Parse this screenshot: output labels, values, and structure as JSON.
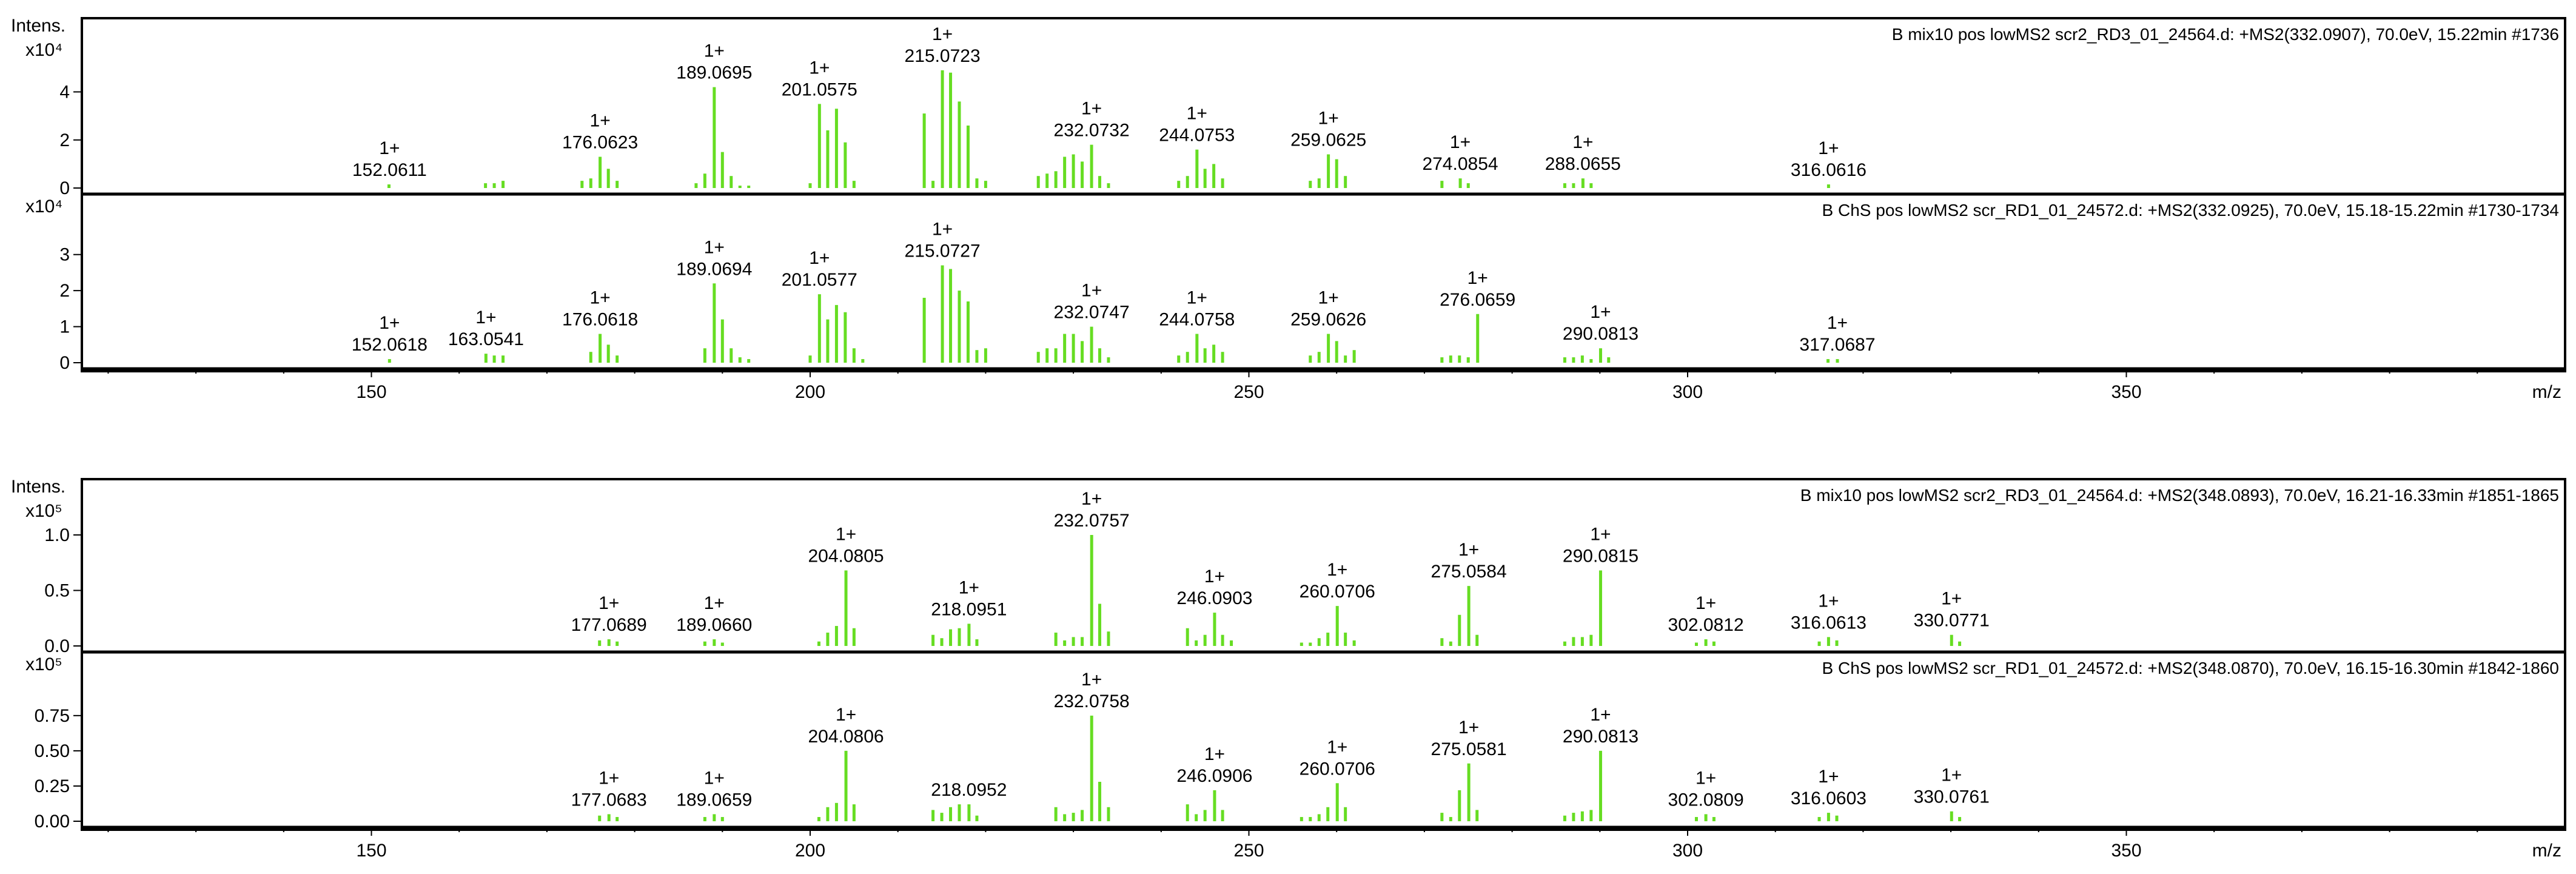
{
  "chart_data": [
    {
      "type": "bar",
      "group": 0,
      "title": "B mix10 pos lowMS2 scr2_RD3_01_24564.d: +MS2(332.0907), 70.0eV, 15.22min #1736",
      "ylabel": "Intens.",
      "yexp": "x10⁴",
      "xlabel": "",
      "yticks": [
        "0",
        "2",
        "4"
      ],
      "ytick_values": [
        0,
        2,
        4
      ],
      "ylim": [
        0,
        5.3
      ],
      "color": "#66dd22",
      "labels": [
        {
          "mz": 152.0611,
          "charge": "1+",
          "text": "152.0611"
        },
        {
          "mz": 176.0623,
          "charge": "1+",
          "text": "176.0623"
        },
        {
          "mz": 189.0695,
          "charge": "1+",
          "text": "189.0695"
        },
        {
          "mz": 201.0575,
          "charge": "1+",
          "text": "201.0575"
        },
        {
          "mz": 215.0723,
          "charge": "1+",
          "text": "215.0723"
        },
        {
          "mz": 232.0732,
          "charge": "1+",
          "text": "232.0732"
        },
        {
          "mz": 244.0753,
          "charge": "1+",
          "text": "244.0753"
        },
        {
          "mz": 259.0625,
          "charge": "1+",
          "text": "259.0625"
        },
        {
          "mz": 274.0854,
          "charge": "1+",
          "text": "274.0854"
        },
        {
          "mz": 288.0655,
          "charge": "1+",
          "text": "288.0655"
        },
        {
          "mz": 316.0616,
          "charge": "1+",
          "text": "316.0616"
        }
      ],
      "peaks": [
        [
          152.0,
          0.15
        ],
        [
          163.0,
          0.2
        ],
        [
          164.0,
          0.2
        ],
        [
          165.0,
          0.3
        ],
        [
          174.0,
          0.3
        ],
        [
          175.0,
          0.4
        ],
        [
          176.06,
          1.3
        ],
        [
          177.0,
          0.8
        ],
        [
          178.0,
          0.3
        ],
        [
          187.0,
          0.2
        ],
        [
          188.0,
          0.6
        ],
        [
          189.07,
          4.2
        ],
        [
          190.0,
          1.5
        ],
        [
          191.0,
          0.5
        ],
        [
          192.0,
          0.1
        ],
        [
          193.0,
          0.1
        ],
        [
          200.0,
          0.2
        ],
        [
          201.06,
          3.5
        ],
        [
          202.0,
          2.4
        ],
        [
          203.0,
          3.3
        ],
        [
          204.0,
          1.9
        ],
        [
          205.0,
          0.3
        ],
        [
          213.0,
          3.1
        ],
        [
          214.0,
          0.3
        ],
        [
          215.07,
          4.9
        ],
        [
          216.0,
          4.8
        ],
        [
          217.0,
          3.6
        ],
        [
          218.0,
          2.6
        ],
        [
          219.0,
          0.4
        ],
        [
          220.0,
          0.3
        ],
        [
          226.0,
          0.5
        ],
        [
          227.0,
          0.6
        ],
        [
          228.0,
          0.7
        ],
        [
          229.0,
          1.3
        ],
        [
          230.0,
          1.4
        ],
        [
          231.0,
          1.1
        ],
        [
          232.07,
          1.8
        ],
        [
          233.0,
          0.5
        ],
        [
          234.0,
          0.2
        ],
        [
          242.0,
          0.3
        ],
        [
          243.0,
          0.5
        ],
        [
          244.08,
          1.6
        ],
        [
          245.0,
          0.8
        ],
        [
          246.0,
          1.0
        ],
        [
          247.0,
          0.4
        ],
        [
          257.0,
          0.3
        ],
        [
          258.0,
          0.4
        ],
        [
          259.06,
          1.4
        ],
        [
          260.0,
          1.2
        ],
        [
          261.0,
          0.5
        ],
        [
          272.0,
          0.3
        ],
        [
          274.09,
          0.4
        ],
        [
          275.0,
          0.2
        ],
        [
          286.0,
          0.2
        ],
        [
          287.0,
          0.2
        ],
        [
          288.07,
          0.4
        ],
        [
          289.0,
          0.2
        ],
        [
          316.06,
          0.15
        ]
      ]
    },
    {
      "type": "bar",
      "group": 0,
      "title": "B ChS pos lowMS2 scr_RD1_01_24572.d: +MS2(332.0925), 70.0eV, 15.18-15.22min #1730-1734",
      "ylabel": "",
      "yexp": "x10⁴",
      "xlabel": "m/z",
      "yticks": [
        "0",
        "1",
        "2",
        "3"
      ],
      "ytick_values": [
        0,
        1,
        2,
        3
      ],
      "ylim": [
        0,
        3.5
      ],
      "color": "#66dd22",
      "labels": [
        {
          "mz": 152.0618,
          "charge": "1+",
          "text": "152.0618"
        },
        {
          "mz": 163.0541,
          "charge": "1+",
          "text": "163.0541"
        },
        {
          "mz": 176.0618,
          "charge": "1+",
          "text": "176.0618"
        },
        {
          "mz": 189.0694,
          "charge": "1+",
          "text": "189.0694"
        },
        {
          "mz": 201.0577,
          "charge": "1+",
          "text": "201.0577"
        },
        {
          "mz": 215.0727,
          "charge": "1+",
          "text": "215.0727"
        },
        {
          "mz": 232.0747,
          "charge": "1+",
          "text": "232.0747"
        },
        {
          "mz": 244.0758,
          "charge": "1+",
          "text": "244.0758"
        },
        {
          "mz": 259.0626,
          "charge": "1+",
          "text": "259.0626"
        },
        {
          "mz": 276.0659,
          "charge": "1+",
          "text": "276.0659"
        },
        {
          "mz": 290.0813,
          "charge": "1+",
          "text": "290.0813"
        },
        {
          "mz": 317.0687,
          "charge": "1+",
          "text": "317.0687"
        }
      ],
      "peaks": [
        [
          152.06,
          0.1
        ],
        [
          163.05,
          0.25
        ],
        [
          164.0,
          0.2
        ],
        [
          165.0,
          0.2
        ],
        [
          175.0,
          0.3
        ],
        [
          176.06,
          0.8
        ],
        [
          177.0,
          0.5
        ],
        [
          178.0,
          0.2
        ],
        [
          188.0,
          0.4
        ],
        [
          189.07,
          2.2
        ],
        [
          190.0,
          1.2
        ],
        [
          191.0,
          0.4
        ],
        [
          192.0,
          0.15
        ],
        [
          193.0,
          0.1
        ],
        [
          200.0,
          0.2
        ],
        [
          201.06,
          1.9
        ],
        [
          202.0,
          1.2
        ],
        [
          203.0,
          1.6
        ],
        [
          204.0,
          1.4
        ],
        [
          205.0,
          0.4
        ],
        [
          206.0,
          0.1
        ],
        [
          213.0,
          1.8
        ],
        [
          215.07,
          2.7
        ],
        [
          216.0,
          2.6
        ],
        [
          217.0,
          2.0
        ],
        [
          218.0,
          1.7
        ],
        [
          219.0,
          0.35
        ],
        [
          220.0,
          0.4
        ],
        [
          226.0,
          0.3
        ],
        [
          227.0,
          0.4
        ],
        [
          228.0,
          0.4
        ],
        [
          229.0,
          0.8
        ],
        [
          230.0,
          0.8
        ],
        [
          231.0,
          0.6
        ],
        [
          232.07,
          1.0
        ],
        [
          233.0,
          0.4
        ],
        [
          234.0,
          0.15
        ],
        [
          242.0,
          0.2
        ],
        [
          243.0,
          0.3
        ],
        [
          244.08,
          0.8
        ],
        [
          245.0,
          0.4
        ],
        [
          246.0,
          0.5
        ],
        [
          247.0,
          0.3
        ],
        [
          257.0,
          0.2
        ],
        [
          258.0,
          0.3
        ],
        [
          259.06,
          0.8
        ],
        [
          260.0,
          0.6
        ],
        [
          261.0,
          0.2
        ],
        [
          262.0,
          0.35
        ],
        [
          272.0,
          0.15
        ],
        [
          273.0,
          0.2
        ],
        [
          274.0,
          0.2
        ],
        [
          275.0,
          0.15
        ],
        [
          276.07,
          1.35
        ],
        [
          286.0,
          0.15
        ],
        [
          287.0,
          0.15
        ],
        [
          288.0,
          0.2
        ],
        [
          289.0,
          0.1
        ],
        [
          290.08,
          0.4
        ],
        [
          291.0,
          0.15
        ],
        [
          316.0,
          0.1
        ],
        [
          317.07,
          0.1
        ]
      ]
    },
    {
      "type": "bar",
      "group": 1,
      "title": "B mix10 pos lowMS2 scr2_RD3_01_24564.d: +MS2(348.0893), 70.0eV, 16.21-16.33min #1851-1865",
      "ylabel": "Intens.",
      "yexp": "x10⁵",
      "xlabel": "",
      "yticks": [
        "0.0",
        "0.5",
        "1.0"
      ],
      "ytick_values": [
        0,
        0.5,
        1.0
      ],
      "ylim": [
        0,
        1.12
      ],
      "color": "#66dd22",
      "labels": [
        {
          "mz": 177.0689,
          "charge": "1+",
          "text": "177.0689"
        },
        {
          "mz": 189.066,
          "charge": "1+",
          "text": "189.0660"
        },
        {
          "mz": 204.0805,
          "charge": "1+",
          "text": "204.0805"
        },
        {
          "mz": 218.0951,
          "charge": "1+",
          "text": "218.0951"
        },
        {
          "mz": 232.0757,
          "charge": "1+",
          "text": "232.0757"
        },
        {
          "mz": 246.0903,
          "charge": "1+",
          "text": "246.0903"
        },
        {
          "mz": 260.0706,
          "charge": "1+",
          "text": "260.0706"
        },
        {
          "mz": 275.0584,
          "charge": "1+",
          "text": "275.0584"
        },
        {
          "mz": 290.0815,
          "charge": "1+",
          "text": "290.0815"
        },
        {
          "mz": 302.0812,
          "charge": "1+",
          "text": "302.0812"
        },
        {
          "mz": 316.0613,
          "charge": "1+",
          "text": "316.0613"
        },
        {
          "mz": 330.0771,
          "charge": "1+",
          "text": "330.0771"
        }
      ],
      "peaks": [
        [
          176.0,
          0.05
        ],
        [
          177.07,
          0.06
        ],
        [
          178.0,
          0.04
        ],
        [
          188.0,
          0.04
        ],
        [
          189.07,
          0.06
        ],
        [
          190.0,
          0.03
        ],
        [
          201.0,
          0.04
        ],
        [
          202.0,
          0.12
        ],
        [
          203.0,
          0.18
        ],
        [
          204.08,
          0.68
        ],
        [
          205.0,
          0.16
        ],
        [
          214.0,
          0.1
        ],
        [
          215.0,
          0.07
        ],
        [
          216.0,
          0.15
        ],
        [
          217.0,
          0.16
        ],
        [
          218.1,
          0.2
        ],
        [
          219.0,
          0.06
        ],
        [
          228.0,
          0.12
        ],
        [
          229.0,
          0.05
        ],
        [
          230.0,
          0.08
        ],
        [
          231.0,
          0.08
        ],
        [
          232.08,
          1.0
        ],
        [
          233.0,
          0.38
        ],
        [
          234.0,
          0.13
        ],
        [
          243.0,
          0.16
        ],
        [
          244.0,
          0.05
        ],
        [
          245.0,
          0.1
        ],
        [
          246.09,
          0.3
        ],
        [
          247.0,
          0.1
        ],
        [
          248.0,
          0.05
        ],
        [
          256.0,
          0.03
        ],
        [
          257.0,
          0.03
        ],
        [
          258.0,
          0.07
        ],
        [
          259.0,
          0.12
        ],
        [
          260.07,
          0.36
        ],
        [
          261.0,
          0.12
        ],
        [
          262.0,
          0.05
        ],
        [
          272.0,
          0.07
        ],
        [
          273.0,
          0.04
        ],
        [
          274.0,
          0.28
        ],
        [
          275.06,
          0.54
        ],
        [
          276.0,
          0.1
        ],
        [
          286.0,
          0.04
        ],
        [
          287.0,
          0.08
        ],
        [
          288.0,
          0.08
        ],
        [
          289.0,
          0.1
        ],
        [
          290.08,
          0.68
        ],
        [
          301.0,
          0.03
        ],
        [
          302.08,
          0.06
        ],
        [
          303.0,
          0.04
        ],
        [
          315.0,
          0.04
        ],
        [
          316.06,
          0.08
        ],
        [
          317.0,
          0.05
        ],
        [
          330.08,
          0.1
        ],
        [
          331.0,
          0.04
        ]
      ]
    },
    {
      "type": "bar",
      "group": 1,
      "title": "B ChS pos lowMS2 scr_RD1_01_24572.d: +MS2(348.0870), 70.0eV, 16.15-16.30min #1842-1860",
      "ylabel": "",
      "yexp": "x10⁵",
      "xlabel": "m/z",
      "yticks": [
        "0.00",
        "0.25",
        "0.50",
        "0.75"
      ],
      "ytick_values": [
        0,
        0.25,
        0.5,
        0.75
      ],
      "ylim": [
        0,
        0.9
      ],
      "color": "#66dd22",
      "labels": [
        {
          "mz": 177.0683,
          "charge": "1+",
          "text": "177.0683"
        },
        {
          "mz": 189.0659,
          "charge": "1+",
          "text": "189.0659"
        },
        {
          "mz": 204.0806,
          "charge": "1+",
          "text": "204.0806"
        },
        {
          "mz": 218.0952,
          "charge": "",
          "text": "218.0952"
        },
        {
          "mz": 232.0758,
          "charge": "1+",
          "text": "232.0758"
        },
        {
          "mz": 246.0906,
          "charge": "1+",
          "text": "246.0906"
        },
        {
          "mz": 260.0706,
          "charge": "1+",
          "text": "260.0706"
        },
        {
          "mz": 275.0581,
          "charge": "1+",
          "text": "275.0581"
        },
        {
          "mz": 290.0813,
          "charge": "1+",
          "text": "290.0813"
        },
        {
          "mz": 302.0809,
          "charge": "1+",
          "text": "302.0809"
        },
        {
          "mz": 316.0603,
          "charge": "1+",
          "text": "316.0603"
        },
        {
          "mz": 330.0761,
          "charge": "1+",
          "text": "330.0761"
        }
      ],
      "peaks": [
        [
          176.0,
          0.04
        ],
        [
          177.07,
          0.05
        ],
        [
          178.0,
          0.03
        ],
        [
          188.0,
          0.03
        ],
        [
          189.07,
          0.05
        ],
        [
          190.0,
          0.03
        ],
        [
          201.0,
          0.03
        ],
        [
          202.0,
          0.1
        ],
        [
          203.0,
          0.13
        ],
        [
          204.08,
          0.5
        ],
        [
          205.0,
          0.12
        ],
        [
          214.0,
          0.08
        ],
        [
          215.0,
          0.06
        ],
        [
          216.0,
          0.1
        ],
        [
          217.0,
          0.12
        ],
        [
          218.1,
          0.12
        ],
        [
          219.0,
          0.04
        ],
        [
          228.0,
          0.1
        ],
        [
          229.0,
          0.05
        ],
        [
          230.0,
          0.06
        ],
        [
          231.0,
          0.08
        ],
        [
          232.08,
          0.75
        ],
        [
          233.0,
          0.28
        ],
        [
          234.0,
          0.1
        ],
        [
          243.0,
          0.12
        ],
        [
          244.0,
          0.05
        ],
        [
          245.0,
          0.08
        ],
        [
          246.09,
          0.22
        ],
        [
          247.0,
          0.08
        ],
        [
          256.0,
          0.03
        ],
        [
          257.0,
          0.03
        ],
        [
          258.0,
          0.05
        ],
        [
          259.0,
          0.1
        ],
        [
          260.07,
          0.27
        ],
        [
          261.0,
          0.1
        ],
        [
          272.0,
          0.06
        ],
        [
          273.0,
          0.03
        ],
        [
          274.0,
          0.22
        ],
        [
          275.06,
          0.41
        ],
        [
          276.0,
          0.08
        ],
        [
          286.0,
          0.04
        ],
        [
          287.0,
          0.06
        ],
        [
          288.0,
          0.07
        ],
        [
          289.0,
          0.08
        ],
        [
          290.08,
          0.5
        ],
        [
          301.0,
          0.03
        ],
        [
          302.08,
          0.05
        ],
        [
          303.0,
          0.03
        ],
        [
          315.0,
          0.03
        ],
        [
          316.06,
          0.06
        ],
        [
          317.0,
          0.04
        ],
        [
          330.08,
          0.07
        ],
        [
          331.0,
          0.03
        ]
      ]
    }
  ],
  "x_axis": {
    "ticks": [
      "150",
      "200",
      "250",
      "300",
      "350"
    ],
    "tick_values": [
      150,
      200,
      250,
      300,
      350
    ],
    "xlim": [
      117,
      400
    ],
    "label": "m/z"
  }
}
